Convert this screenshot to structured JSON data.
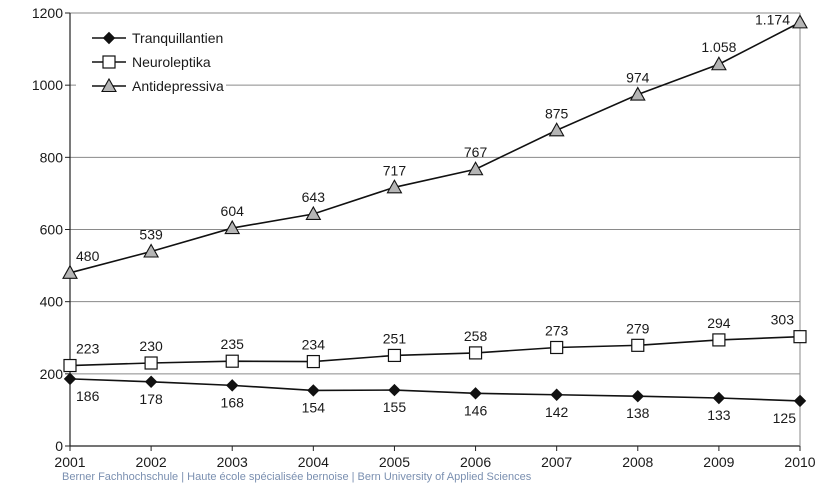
{
  "chart_data": {
    "type": "line",
    "x": [
      "2001",
      "2002",
      "2003",
      "2004",
      "2005",
      "2006",
      "2007",
      "2008",
      "2009",
      "2010"
    ],
    "ylim": [
      0,
      1200
    ],
    "yticks": [
      0,
      200,
      400,
      600,
      800,
      1000,
      1200
    ],
    "grid": "horizontal",
    "legend_position": "top-left",
    "series": [
      {
        "name": "Tranquillantien",
        "marker": "diamond",
        "marker_color": "#111111",
        "values": [
          186,
          178,
          168,
          154,
          155,
          146,
          142,
          138,
          133,
          125
        ],
        "labels": [
          "186",
          "178",
          "168",
          "154",
          "155",
          "146",
          "142",
          "138",
          "133",
          "125"
        ]
      },
      {
        "name": "Neuroleptika",
        "marker": "square",
        "marker_color": "#ffffff",
        "values": [
          223,
          230,
          235,
          234,
          251,
          258,
          273,
          279,
          294,
          303
        ],
        "labels": [
          "223",
          "230",
          "235",
          "234",
          "251",
          "258",
          "273",
          "279",
          "294",
          "303"
        ]
      },
      {
        "name": "Antidepressiva",
        "marker": "triangle",
        "marker_color": "#b5b5b5",
        "values": [
          480,
          539,
          604,
          643,
          717,
          767,
          875,
          974,
          1058,
          1174
        ],
        "labels": [
          "480",
          "539",
          "604",
          "643",
          "717",
          "767",
          "875",
          "974",
          "1.058",
          "1.174"
        ]
      }
    ]
  },
  "footer_text": "Berner Fachhochschule | Haute école spécialisée bernoise | Bern University of Applied Sciences"
}
